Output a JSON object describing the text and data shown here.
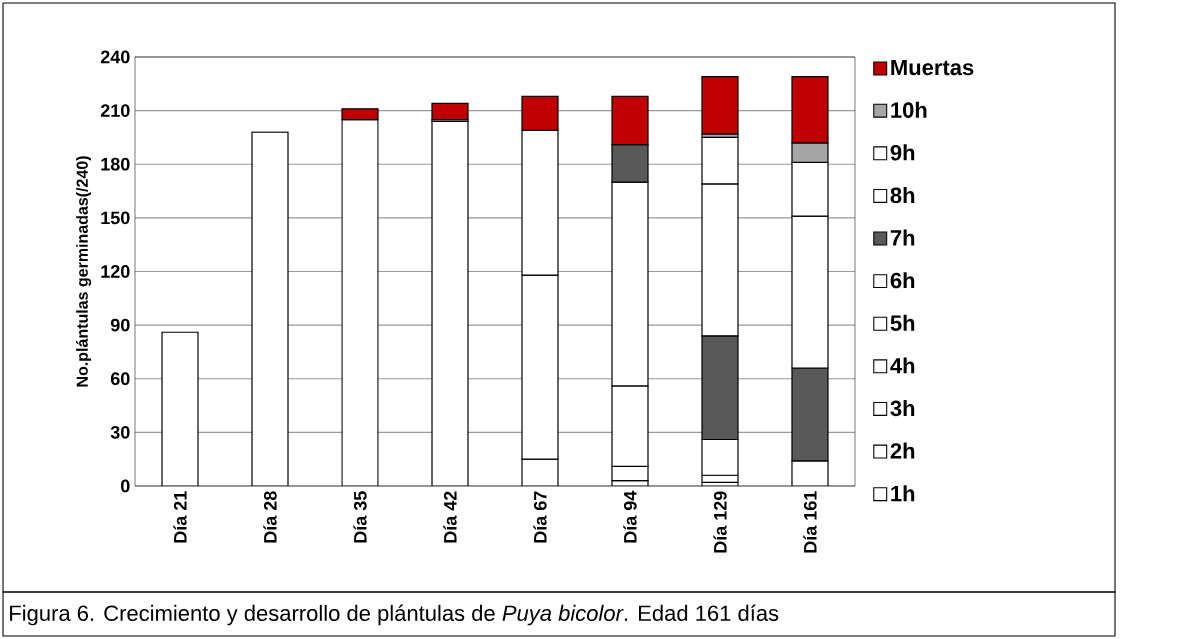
{
  "chart_data": {
    "type": "bar",
    "stacked": true,
    "ylabel": "No.plántulas germinadas(/240)",
    "categories": [
      "Día 21",
      "Día 28",
      "Día 35",
      "Día 42",
      "Día 67",
      "Día 94",
      "Día 129",
      "Día 161"
    ],
    "series": [
      {
        "name": "1h",
        "color": "#ffffff",
        "values": [
          86,
          198,
          205,
          204,
          null,
          3,
          2,
          null
        ]
      },
      {
        "name": "2h",
        "color": "#ffffff",
        "values": [
          null,
          null,
          null,
          null,
          null,
          null,
          null,
          null
        ]
      },
      {
        "name": "3h",
        "color": "#ffffff",
        "values": [
          null,
          null,
          null,
          null,
          15,
          null,
          4,
          null
        ]
      },
      {
        "name": "4h",
        "color": "#ffffff",
        "values": [
          null,
          null,
          null,
          null,
          103,
          8,
          null,
          null
        ]
      },
      {
        "name": "5h",
        "color": "#ffffff",
        "values": [
          null,
          null,
          null,
          1,
          81,
          45,
          null,
          null
        ]
      },
      {
        "name": "6h",
        "color": "#ffffff",
        "values": [
          null,
          null,
          null,
          null,
          null,
          114,
          20,
          14
        ]
      },
      {
        "name": "7h",
        "color": "#595959",
        "values": [
          null,
          null,
          null,
          null,
          null,
          21,
          58,
          52
        ]
      },
      {
        "name": "8h",
        "color": "#ffffff",
        "values": [
          null,
          null,
          null,
          null,
          null,
          null,
          85,
          85
        ]
      },
      {
        "name": "9h",
        "color": "#ffffff",
        "values": [
          null,
          null,
          null,
          null,
          null,
          null,
          26,
          30
        ]
      },
      {
        "name": "10h",
        "color": "#a6a6a6",
        "values": [
          null,
          null,
          null,
          null,
          null,
          null,
          2,
          11
        ]
      },
      {
        "name": "Muertas",
        "color": "#c00000",
        "values": [
          null,
          null,
          6,
          9,
          19,
          27,
          32,
          37
        ]
      }
    ],
    "ylim": [
      0,
      240
    ],
    "yticks": [
      0,
      30,
      60,
      90,
      120,
      150,
      180,
      210,
      240
    ],
    "grid": "y",
    "legend": "right",
    "annotations": [
      "Figura 6. Crecimiento y desarrollo de plántulas de *Puya bicolor*. Edad 161 días"
    ]
  }
}
